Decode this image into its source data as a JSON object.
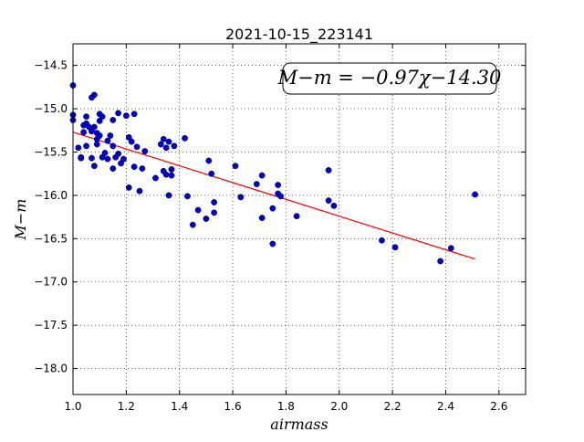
{
  "chart_data": {
    "type": "scatter",
    "title": "2021-10-15_223141",
    "xlabel": "airmass",
    "ylabel": "M−m",
    "xlim": [
      1.0,
      2.7
    ],
    "ylim": [
      -18.3,
      -14.25
    ],
    "y_inverted": true,
    "grid": true,
    "x_ticks": [
      1.0,
      1.2,
      1.4,
      1.6,
      1.8,
      2.0,
      2.2,
      2.4,
      2.6
    ],
    "x_tick_labels": [
      "1.0",
      "1.2",
      "1.4",
      "1.6",
      "1.8",
      "2.0",
      "2.2",
      "2.4",
      "2.6"
    ],
    "y_ticks": [
      -14.5,
      -15.0,
      -15.5,
      -16.0,
      -16.5,
      -17.0,
      -17.5,
      -18.0
    ],
    "y_tick_labels": [
      "−14.5",
      "−15.0",
      "−15.5",
      "−16.0",
      "−16.5",
      "−17.0",
      "−17.5",
      "−18.0"
    ],
    "annotation": "M−m = −0.97χ−14.30",
    "fit": {
      "slope": -0.97,
      "intercept": -14.3,
      "x_range": [
        1.0,
        2.51
      ],
      "color": "#ff0000"
    },
    "point_color": "#0000cc",
    "points": [
      [
        1.0,
        -14.73
      ],
      [
        1.0,
        -15.07
      ],
      [
        1.0,
        -15.13
      ],
      [
        1.02,
        -15.45
      ],
      [
        1.03,
        -15.56
      ],
      [
        1.03,
        -15.57
      ],
      [
        1.04,
        -15.19
      ],
      [
        1.04,
        -15.27
      ],
      [
        1.05,
        -15.17
      ],
      [
        1.05,
        -15.09
      ],
      [
        1.05,
        -15.43
      ],
      [
        1.06,
        -15.21
      ],
      [
        1.07,
        -15.26
      ],
      [
        1.07,
        -15.57
      ],
      [
        1.07,
        -14.87
      ],
      [
        1.08,
        -14.84
      ],
      [
        1.08,
        -15.66
      ],
      [
        1.08,
        -15.21
      ],
      [
        1.09,
        -15.28
      ],
      [
        1.09,
        -15.35
      ],
      [
        1.09,
        -15.41
      ],
      [
        1.1,
        -15.06
      ],
      [
        1.1,
        -15.14
      ],
      [
        1.1,
        -15.31
      ],
      [
        1.11,
        -15.09
      ],
      [
        1.11,
        -15.56
      ],
      [
        1.12,
        -15.51
      ],
      [
        1.13,
        -15.37
      ],
      [
        1.13,
        -15.58
      ],
      [
        1.14,
        -15.31
      ],
      [
        1.15,
        -15.13
      ],
      [
        1.15,
        -15.43
      ],
      [
        1.15,
        -15.69
      ],
      [
        1.16,
        -15.56
      ],
      [
        1.17,
        -15.05
      ],
      [
        1.17,
        -15.52
      ],
      [
        1.18,
        -15.63
      ],
      [
        1.19,
        -15.58
      ],
      [
        1.2,
        -15.08
      ],
      [
        1.21,
        -15.33
      ],
      [
        1.21,
        -15.91
      ],
      [
        1.22,
        -15.38
      ],
      [
        1.23,
        -15.06
      ],
      [
        1.23,
        -15.67
      ],
      [
        1.24,
        -15.44
      ],
      [
        1.25,
        -15.95
      ],
      [
        1.26,
        -15.69
      ],
      [
        1.27,
        -15.49
      ],
      [
        1.31,
        -15.8
      ],
      [
        1.33,
        -15.41
      ],
      [
        1.34,
        -15.35
      ],
      [
        1.34,
        -15.72
      ],
      [
        1.35,
        -15.45
      ],
      [
        1.35,
        -15.76
      ],
      [
        1.36,
        -16.0
      ],
      [
        1.36,
        -15.38
      ],
      [
        1.37,
        -15.7
      ],
      [
        1.37,
        -15.77
      ],
      [
        1.38,
        -15.43
      ],
      [
        1.42,
        -15.34
      ],
      [
        1.43,
        -16.01
      ],
      [
        1.45,
        -16.34
      ],
      [
        1.47,
        -16.17
      ],
      [
        1.5,
        -16.27
      ],
      [
        1.51,
        -15.6
      ],
      [
        1.52,
        -15.75
      ],
      [
        1.53,
        -16.08
      ],
      [
        1.53,
        -16.2
      ],
      [
        1.61,
        -15.66
      ],
      [
        1.63,
        -16.02
      ],
      [
        1.69,
        -15.87
      ],
      [
        1.71,
        -15.77
      ],
      [
        1.71,
        -16.26
      ],
      [
        1.75,
        -16.15
      ],
      [
        1.75,
        -16.56
      ],
      [
        1.77,
        -15.88
      ],
      [
        1.77,
        -15.98
      ],
      [
        1.78,
        -16.01
      ],
      [
        1.84,
        -16.24
      ],
      [
        1.96,
        -15.71
      ],
      [
        1.96,
        -16.06
      ],
      [
        1.98,
        -16.12
      ],
      [
        2.16,
        -16.52
      ],
      [
        2.21,
        -16.6
      ],
      [
        2.38,
        -16.76
      ],
      [
        2.42,
        -16.61
      ],
      [
        2.51,
        -15.99
      ]
    ]
  }
}
